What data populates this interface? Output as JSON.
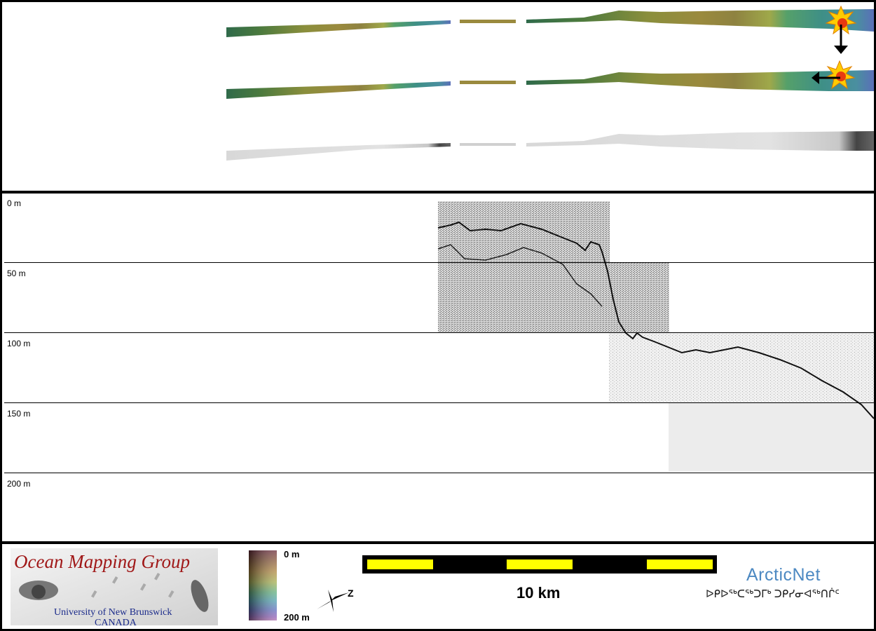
{
  "depth_profile": {
    "labels": [
      "0 m",
      "50 m",
      "100 m",
      "150 m",
      "200 m"
    ]
  },
  "logos": {
    "omg_title": "Ocean Mapping Group",
    "omg_subtitle_1": "University of New Brunswick",
    "omg_subtitle_2": "CANADA",
    "arcticnet": "ArcticNet",
    "arcticnet_inuktitut": "ᐅᑭᐅᖅᑕᖅᑐᒥᒃ ᑐᑭᓯᓂᐊᖅᑎᒌᑦ"
  },
  "colorbar": {
    "top_label": "0 m",
    "bottom_label": "200 m",
    "colors": [
      "#6b2a3a",
      "#8a5a3a",
      "#b08840",
      "#a8b050",
      "#60b080",
      "#50a0b0",
      "#6070c0",
      "#9060b8",
      "#b070b0"
    ]
  },
  "scale_bar": {
    "label": "10 km",
    "segment_color": "#ffff00"
  },
  "compass": {
    "direction_label": "Z"
  },
  "colors": {
    "frame": "#000000",
    "marker": "#ffcc00"
  }
}
